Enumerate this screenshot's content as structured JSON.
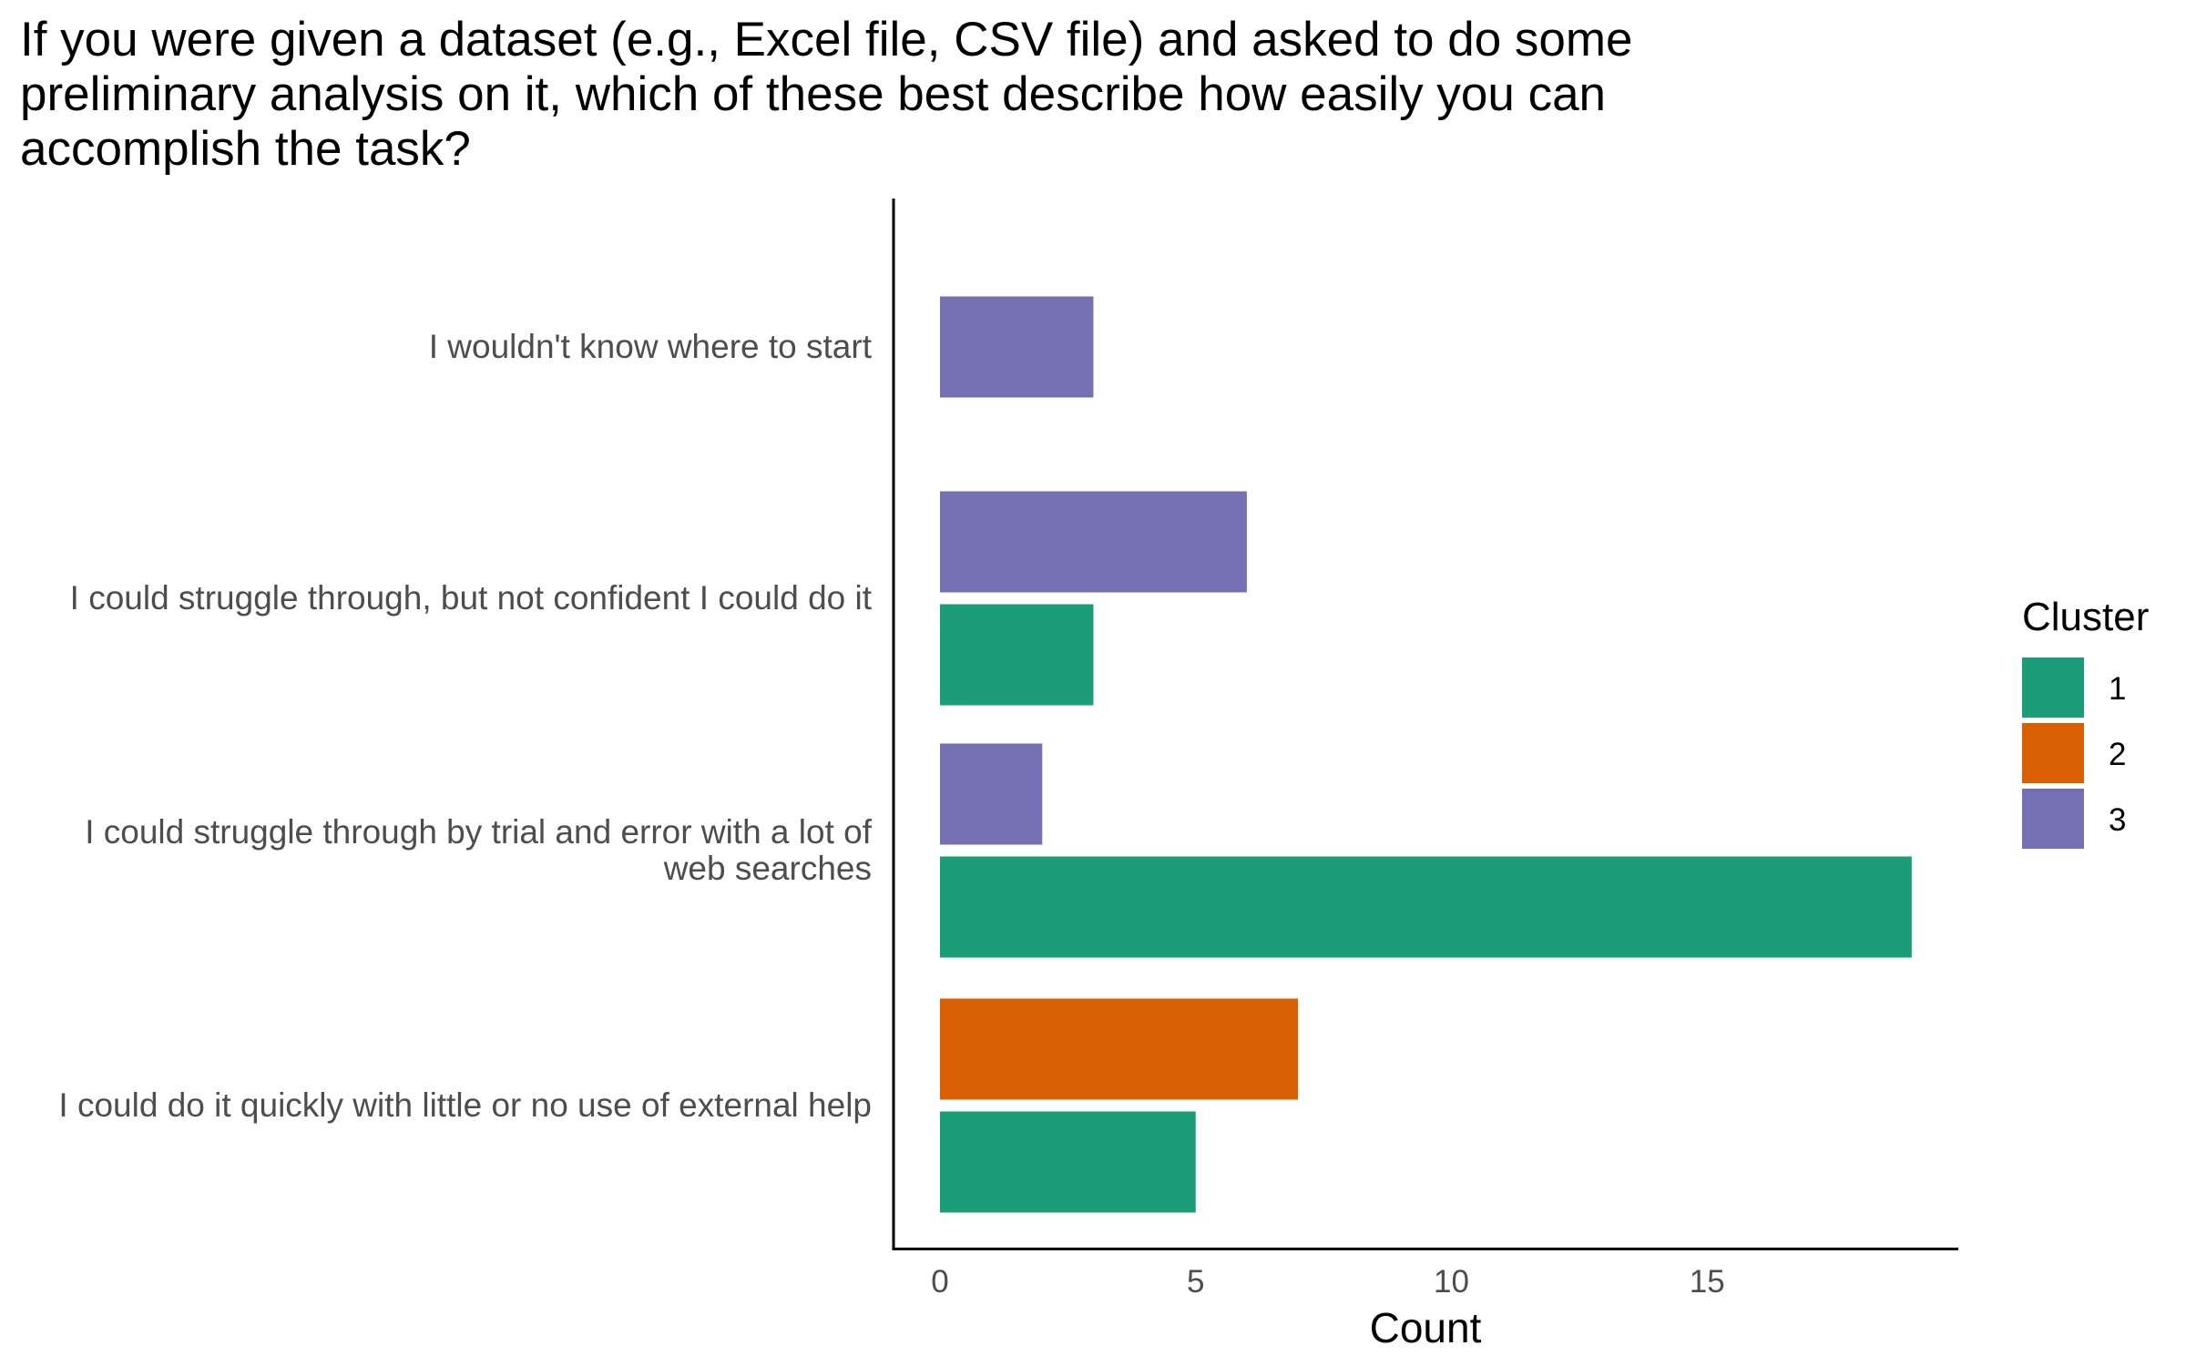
{
  "chart_data": {
    "type": "bar",
    "orientation": "horizontal",
    "title": "If you were given a dataset (e.g., Excel file, CSV file) and asked to do some\npreliminary analysis on it, which of these best describe how easily you can\naccomplish the task?",
    "xlabel": "Count",
    "ylabel": "",
    "xlim": [
      0,
      19
    ],
    "xticks": [
      0,
      5,
      10,
      15
    ],
    "grid": false,
    "legend": {
      "title": "Cluster",
      "position": "right",
      "entries": [
        {
          "label": "1",
          "color": "#1b9e77"
        },
        {
          "label": "2",
          "color": "#d95f02"
        },
        {
          "label": "3",
          "color": "#7570b3"
        }
      ]
    },
    "categories": [
      "I wouldn't know where to start",
      "I could struggle through, but not confident I could do it",
      "I could struggle through by trial and error with a lot of\nweb searches",
      "I could do it quickly with little or no use of external help"
    ],
    "series": [
      {
        "name": "1",
        "color": "#1b9e77",
        "values": [
          0,
          3,
          19,
          5
        ]
      },
      {
        "name": "2",
        "color": "#d95f02",
        "values": [
          0,
          0,
          0,
          7
        ]
      },
      {
        "name": "3",
        "color": "#7570b3",
        "values": [
          3,
          6,
          2,
          0
        ]
      }
    ]
  }
}
